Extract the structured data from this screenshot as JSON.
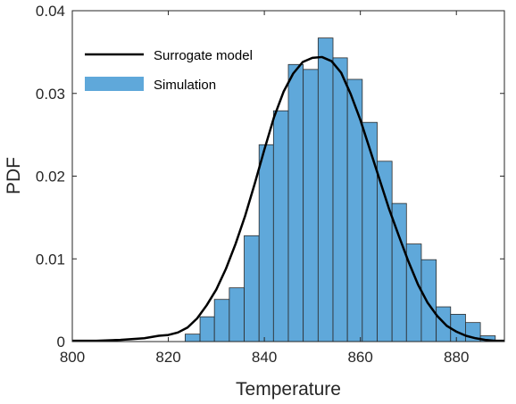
{
  "chart_data": {
    "type": "bar",
    "xlabel": "Temperature",
    "ylabel": "PDF",
    "xlim": [
      800,
      890
    ],
    "ylim": [
      0,
      0.04
    ],
    "xticks": [
      {
        "value": 800,
        "label": "800"
      },
      {
        "value": 820,
        "label": "820"
      },
      {
        "value": 840,
        "label": "840"
      },
      {
        "value": 860,
        "label": "860"
      },
      {
        "value": 880,
        "label": "880"
      }
    ],
    "yticks": [
      {
        "value": 0,
        "label": "0"
      },
      {
        "value": 0.01,
        "label": "0.01"
      },
      {
        "value": 0.02,
        "label": "0.02"
      },
      {
        "value": 0.03,
        "label": "0.03"
      },
      {
        "value": 0.04,
        "label": "0.04"
      }
    ],
    "grid": false,
    "legend_position": "top-left",
    "series": [
      {
        "name": "Simulation",
        "kind": "histogram",
        "color": "#5fa8da",
        "edge_color": "#2b2b2b",
        "bins": [
          {
            "x0": 823.5,
            "x1": 826.6,
            "y": 0.0009
          },
          {
            "x0": 826.6,
            "x1": 829.6,
            "y": 0.003
          },
          {
            "x0": 829.6,
            "x1": 832.7,
            "y": 0.0051
          },
          {
            "x0": 832.7,
            "x1": 835.8,
            "y": 0.0065
          },
          {
            "x0": 835.8,
            "x1": 838.9,
            "y": 0.0128
          },
          {
            "x0": 838.9,
            "x1": 841.9,
            "y": 0.0238
          },
          {
            "x0": 841.9,
            "x1": 845.0,
            "y": 0.0279
          },
          {
            "x0": 845.0,
            "x1": 848.1,
            "y": 0.0335
          },
          {
            "x0": 848.1,
            "x1": 851.2,
            "y": 0.0329
          },
          {
            "x0": 851.2,
            "x1": 854.3,
            "y": 0.0367
          },
          {
            "x0": 854.3,
            "x1": 857.3,
            "y": 0.0343
          },
          {
            "x0": 857.3,
            "x1": 860.4,
            "y": 0.0317
          },
          {
            "x0": 860.4,
            "x1": 863.5,
            "y": 0.0265
          },
          {
            "x0": 863.5,
            "x1": 866.6,
            "y": 0.0218
          },
          {
            "x0": 866.6,
            "x1": 869.6,
            "y": 0.0167
          },
          {
            "x0": 869.6,
            "x1": 872.7,
            "y": 0.0118
          },
          {
            "x0": 872.7,
            "x1": 875.8,
            "y": 0.0099
          },
          {
            "x0": 875.8,
            "x1": 878.8,
            "y": 0.0042
          },
          {
            "x0": 878.8,
            "x1": 881.9,
            "y": 0.0033
          },
          {
            "x0": 881.9,
            "x1": 885.0,
            "y": 0.0023
          },
          {
            "x0": 885.0,
            "x1": 888.1,
            "y": 0.0007
          }
        ]
      },
      {
        "name": "Surrogate model",
        "kind": "line",
        "color": "#000000",
        "x": [
          800,
          805,
          810,
          815,
          818,
          820,
          822,
          824,
          826,
          828,
          830,
          832,
          834,
          836,
          838,
          840,
          842,
          844,
          846,
          848,
          850,
          852,
          854,
          856,
          858,
          860,
          862,
          864,
          866,
          868,
          870,
          872,
          874,
          876,
          878,
          880,
          882,
          884,
          886,
          888,
          890
        ],
        "y": [
          0.0001,
          0.0001,
          0.0002,
          0.0004,
          0.0007,
          0.0008,
          0.0011,
          0.0017,
          0.0028,
          0.0044,
          0.0063,
          0.0088,
          0.0118,
          0.0152,
          0.0191,
          0.0232,
          0.0271,
          0.0302,
          0.0324,
          0.0338,
          0.0343,
          0.0344,
          0.0339,
          0.0325,
          0.0299,
          0.0268,
          0.0232,
          0.0196,
          0.016,
          0.0128,
          0.0097,
          0.0069,
          0.0047,
          0.0031,
          0.0019,
          0.0012,
          0.0007,
          0.0004,
          0.0002,
          0.0001,
          0.0001
        ]
      }
    ]
  }
}
